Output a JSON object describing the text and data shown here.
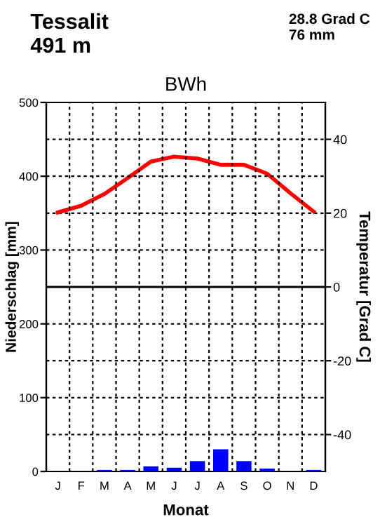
{
  "chart_data": {
    "type": "bar",
    "title": "BWh",
    "xlabel": "Monat",
    "ylabel": "Niederschlag [mm]",
    "y2label": "Temperatur [Grad C]",
    "annotations": [
      "Tessalit",
      "491 m",
      "28.8 Grad C",
      "76 mm"
    ],
    "categories": [
      "J",
      "F",
      "M",
      "A",
      "M",
      "J",
      "J",
      "A",
      "S",
      "O",
      "N",
      "D"
    ],
    "series": [
      {
        "color": "#0000ff",
        "values": [
          0,
          0,
          2,
          2,
          7,
          5,
          14,
          30,
          14,
          4,
          0,
          2
        ]
      },
      {
        "type": "line",
        "axis": "y2",
        "color": "#ff0000",
        "values": [
          20.2,
          22,
          25.2,
          29.5,
          34,
          35.3,
          34.8,
          33.1,
          33.1,
          30.7,
          25.4,
          20.4
        ]
      }
    ],
    "ylim": [
      0,
      500
    ],
    "yticks": [
      0,
      100,
      200,
      300,
      400,
      500
    ],
    "y2lim": [
      -50,
      50
    ],
    "y2ticks": [
      {
        "value": -40,
        "label": "-40"
      },
      {
        "value": -20,
        "label": "-20"
      },
      0,
      20,
      40
    ],
    "ref_lines": [
      {
        "axis": "y2",
        "value": 0,
        "color": "#000000",
        "line_style": "solid"
      }
    ],
    "grid": true,
    "legend": false,
    "marker": "none",
    "line_style": "solid"
  }
}
